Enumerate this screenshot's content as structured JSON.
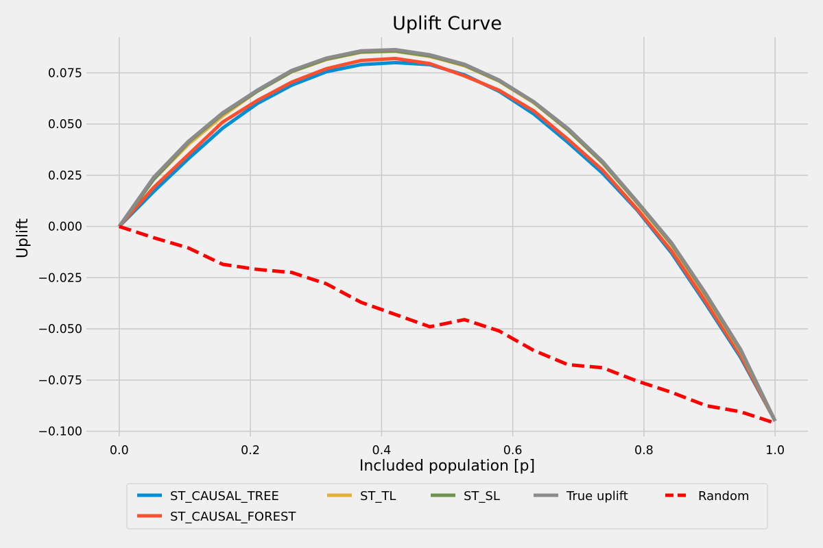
{
  "chart_data": {
    "type": "line",
    "title": "Uplift Curve",
    "xlabel": "Included population [p]",
    "ylabel": "Uplift",
    "xlim": [
      -0.05,
      1.05
    ],
    "ylim": [
      -0.1025,
      0.0925
    ],
    "xticks": [
      0.0,
      0.2,
      0.4,
      0.6,
      0.8,
      1.0
    ],
    "xtick_labels": [
      "0.0",
      "0.2",
      "0.4",
      "0.6",
      "0.8",
      "1.0"
    ],
    "yticks": [
      -0.1,
      -0.075,
      -0.05,
      -0.025,
      0.0,
      0.025,
      0.05,
      0.075
    ],
    "ytick_labels": [
      "−0.100",
      "−0.075",
      "−0.050",
      "−0.025",
      "0.000",
      "0.025",
      "0.050",
      "0.075"
    ],
    "grid": true,
    "legend_position": "bottom-center",
    "x": [
      0.0,
      0.0526,
      0.1053,
      0.1579,
      0.2105,
      0.2632,
      0.3158,
      0.3684,
      0.4211,
      0.4737,
      0.5263,
      0.5789,
      0.6316,
      0.6842,
      0.7368,
      0.7895,
      0.8421,
      0.8947,
      0.9474,
      1.0
    ],
    "series": [
      {
        "name": "ST_CAUSAL_TREE",
        "color": "#008fd5",
        "dash": "solid",
        "values": [
          0.0,
          0.017,
          0.033,
          0.048,
          0.06,
          0.069,
          0.0755,
          0.079,
          0.08,
          0.079,
          0.074,
          0.066,
          0.055,
          0.041,
          0.026,
          0.008,
          -0.013,
          -0.038,
          -0.064,
          -0.095
        ]
      },
      {
        "name": "ST_CAUSAL_FOREST",
        "color": "#fc4f30",
        "dash": "solid",
        "values": [
          0.0,
          0.019,
          0.035,
          0.051,
          0.0615,
          0.0705,
          0.077,
          0.081,
          0.082,
          0.0795,
          0.0735,
          0.0665,
          0.0565,
          0.0425,
          0.0275,
          0.0085,
          -0.012,
          -0.037,
          -0.063,
          -0.095
        ]
      },
      {
        "name": "ST_TL",
        "color": "#e5ae38",
        "dash": "solid",
        "values": [
          0.0,
          0.023,
          0.04,
          0.054,
          0.066,
          0.0755,
          0.0815,
          0.085,
          0.0855,
          0.083,
          0.0785,
          0.071,
          0.0605,
          0.047,
          0.031,
          0.0115,
          -0.009,
          -0.034,
          -0.061,
          -0.095
        ]
      },
      {
        "name": "ST_SL",
        "color": "#6d904f",
        "dash": "solid",
        "values": [
          0.0,
          0.023,
          0.041,
          0.055,
          0.066,
          0.0757,
          0.0817,
          0.0852,
          0.0857,
          0.0833,
          0.0788,
          0.0712,
          0.0608,
          0.0472,
          0.0313,
          0.0118,
          -0.0085,
          -0.0335,
          -0.0605,
          -0.095
        ]
      },
      {
        "name": "True uplift",
        "color": "#8b8b8b",
        "dash": "solid",
        "values": [
          0.0,
          0.024,
          0.0415,
          0.0555,
          0.0665,
          0.0762,
          0.0822,
          0.0857,
          0.0863,
          0.0838,
          0.0792,
          0.0715,
          0.061,
          0.0478,
          0.0318,
          0.0122,
          -0.008,
          -0.033,
          -0.06,
          -0.095
        ]
      },
      {
        "name": "Random",
        "color": "#ff0000",
        "dash": "dashed",
        "values": [
          0.0,
          -0.0055,
          -0.0105,
          -0.0185,
          -0.021,
          -0.0225,
          -0.028,
          -0.037,
          -0.043,
          -0.049,
          -0.0455,
          -0.051,
          -0.0605,
          -0.0675,
          -0.069,
          -0.0755,
          -0.081,
          -0.0875,
          -0.0905,
          -0.096
        ]
      }
    ]
  }
}
